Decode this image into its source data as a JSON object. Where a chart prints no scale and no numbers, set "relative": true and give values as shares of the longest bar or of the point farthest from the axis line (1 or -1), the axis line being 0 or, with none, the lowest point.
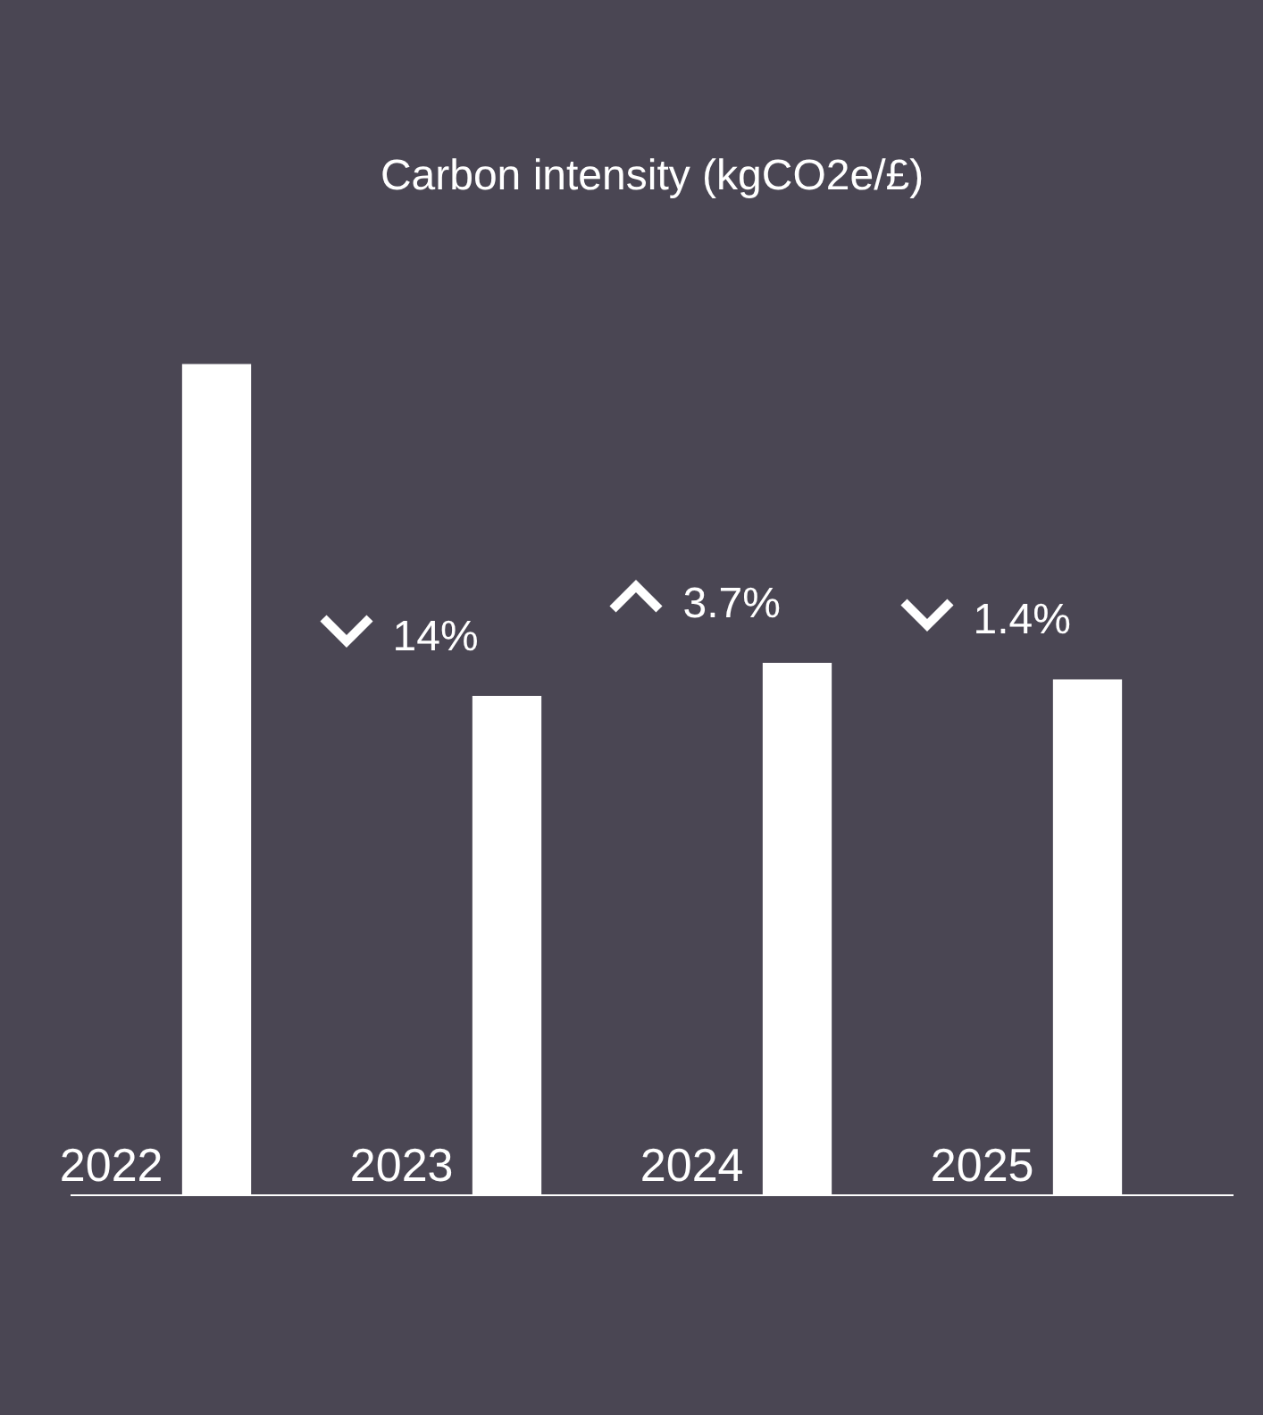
{
  "chart_data": {
    "type": "bar",
    "title": "Carbon intensity (kgCO2e/£)",
    "categories": [
      "2022",
      "2023",
      "2024",
      "2025"
    ],
    "values": [
      1,
      0.6,
      0.64,
      0.62
    ],
    "color": "#ffffff",
    "relative": true,
    "annotations": [
      "14%",
      "3.7%",
      "1.4%"
    ]
  }
}
